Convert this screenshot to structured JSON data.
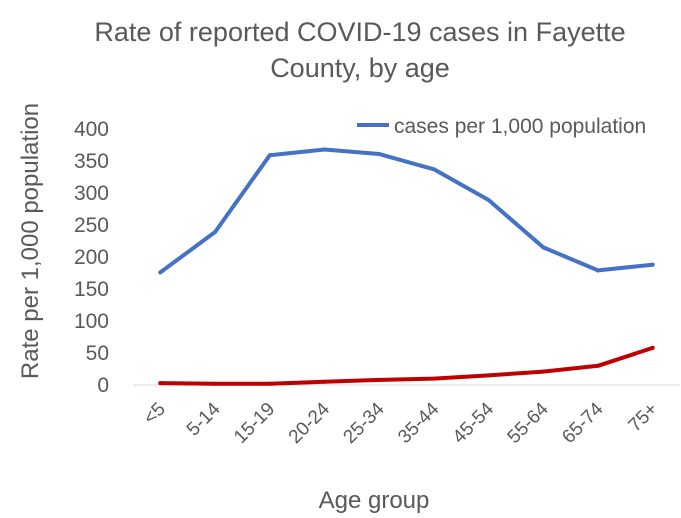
{
  "chart_data": {
    "type": "line",
    "title": "Rate of reported COVID-19 cases in Fayette County, by age",
    "xlabel": "Age group",
    "ylabel": "Rate per 1,000 population",
    "ylim": [
      0,
      400
    ],
    "yticks": [
      0,
      50,
      100,
      150,
      200,
      250,
      300,
      350,
      400
    ],
    "grid": false,
    "legend_position": "top-right",
    "categories": [
      "<5",
      "5-14",
      "15-19",
      "20-24",
      "25-34",
      "35-44",
      "45-54",
      "55-64",
      "65-74",
      "75+"
    ],
    "series": [
      {
        "name": "cases per 1,000 population",
        "color": "#4472C4",
        "values": [
          176,
          239,
          359,
          368,
          361,
          337,
          289,
          215,
          179,
          188
        ]
      },
      {
        "name": "",
        "color": "#C00000",
        "values": [
          3,
          2,
          2,
          5,
          8,
          10,
          15,
          21,
          30,
          58
        ]
      }
    ]
  }
}
